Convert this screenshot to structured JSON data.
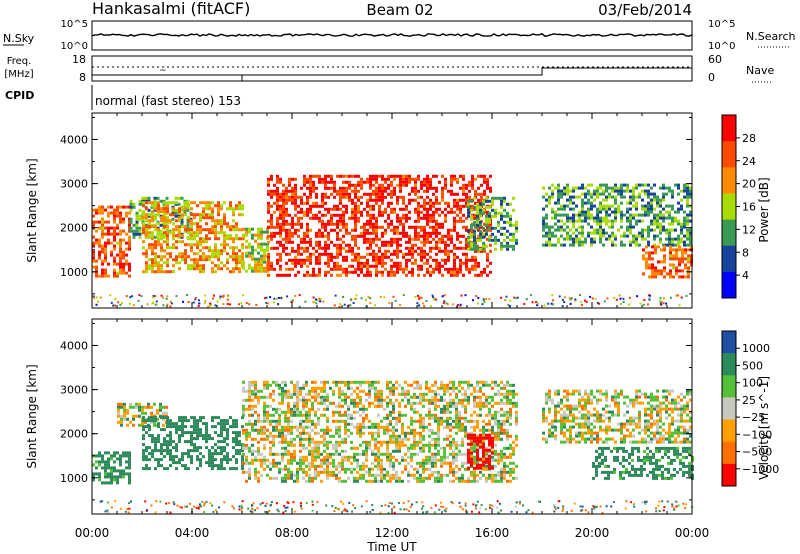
{
  "header": {
    "station": "Hankasalmi (fitACF)",
    "beam": "Beam 02",
    "date": "03/Feb/2014"
  },
  "top_panels": {
    "nsky_label": "N.Sky",
    "nsearch_label": "N.Search",
    "freq_label_1": "Freq.",
    "freq_label_2": "[MHz]",
    "nave_label": "Nave",
    "cpid_label": "CPID",
    "cpid_text": "normal (fast stereo) 153",
    "noise_ticks": [
      "10^5",
      "10^0"
    ],
    "noise_ticks_right": [
      "10^5",
      "10^0"
    ],
    "freq_ticks": [
      "18",
      "8"
    ],
    "nave_ticks": [
      "60",
      "0"
    ]
  },
  "colorbars": {
    "power": {
      "label": "Power [dB]",
      "ticks": [
        "28",
        "24",
        "20",
        "16",
        "12",
        "8",
        "4"
      ],
      "colors": [
        "#ff0000",
        "#ff4a00",
        "#ff8a00",
        "#a8dc00",
        "#3a9a54",
        "#16449c",
        "#0000ff"
      ]
    },
    "velocity": {
      "label": "Velocity [m s^-1]",
      "ticks": [
        "1000",
        "500",
        "100",
        "25",
        "−25",
        "−100",
        "−500",
        "−1000"
      ],
      "colors": [
        "#1e4fa0",
        "#2e8a5a",
        "#55c036",
        "#c8c8c0",
        "#ffa000",
        "#ff7000",
        "#ff0000"
      ]
    }
  },
  "chart_data": [
    {
      "type": "heatmap",
      "title": "Power",
      "ylabel": "Slant Range [km]",
      "xlabel": "Time UT",
      "x_ticks": [
        "00:00",
        "04:00",
        "08:00",
        "12:00",
        "16:00",
        "20:00",
        "00:00"
      ],
      "y_ticks": [
        "1000",
        "2000",
        "3000",
        "4000"
      ],
      "xlim_hours": [
        0,
        24
      ],
      "ylim_km": [
        180,
        4600
      ],
      "colorbar_range_db": [
        0,
        32
      ],
      "echo_regions": [
        {
          "t_start": 0.0,
          "t_end": 1.5,
          "range_km": [
            900,
            2500
          ],
          "power_db": 24
        },
        {
          "t_start": 1.5,
          "t_end": 4.0,
          "range_km": [
            1800,
            2700
          ],
          "power_db": 12
        },
        {
          "t_start": 2.0,
          "t_end": 6.0,
          "range_km": [
            1000,
            2600
          ],
          "power_db": 20
        },
        {
          "t_start": 6.0,
          "t_end": 7.0,
          "range_km": [
            1000,
            2000
          ],
          "power_db": 16
        },
        {
          "t_start": 7.0,
          "t_end": 16.0,
          "range_km": [
            900,
            3200
          ],
          "power_db": 28
        },
        {
          "t_start": 15.0,
          "t_end": 17.0,
          "range_km": [
            1500,
            2700
          ],
          "power_db": 12
        },
        {
          "t_start": 18.0,
          "t_end": 24.0,
          "range_km": [
            1600,
            3000
          ],
          "power_db": 12
        },
        {
          "t_start": 22.0,
          "t_end": 24.0,
          "range_km": [
            900,
            1600
          ],
          "power_db": 24
        }
      ]
    },
    {
      "type": "heatmap",
      "title": "Velocity",
      "ylabel": "Slant Range [km]",
      "xlabel": "Time UT",
      "x_ticks": [
        "00:00",
        "04:00",
        "08:00",
        "12:00",
        "16:00",
        "20:00",
        "00:00"
      ],
      "y_ticks": [
        "1000",
        "2000",
        "3000",
        "4000"
      ],
      "xlim_hours": [
        0,
        24
      ],
      "ylim_km": [
        180,
        4600
      ],
      "colorbar_range_ms": [
        -1000,
        1000
      ],
      "echo_regions": [
        {
          "t_start": 0.0,
          "t_end": 1.5,
          "range_km": [
            900,
            1600
          ],
          "velocity_ms": 200
        },
        {
          "t_start": 1.0,
          "t_end": 3.0,
          "range_km": [
            2200,
            2700
          ],
          "velocity_ms": 0
        },
        {
          "t_start": 2.0,
          "t_end": 6.0,
          "range_km": [
            1200,
            2400
          ],
          "velocity_ms": 300
        },
        {
          "t_start": 6.0,
          "t_end": 17.0,
          "range_km": [
            900,
            3200
          ],
          "velocity_ms": 0
        },
        {
          "t_start": 15.0,
          "t_end": 16.0,
          "range_km": [
            1200,
            2000
          ],
          "velocity_ms": -700
        },
        {
          "t_start": 18.0,
          "t_end": 24.0,
          "range_km": [
            1800,
            3000
          ],
          "velocity_ms": 0
        },
        {
          "t_start": 20.0,
          "t_end": 24.0,
          "range_km": [
            1000,
            1700
          ],
          "velocity_ms": 200
        }
      ]
    }
  ]
}
